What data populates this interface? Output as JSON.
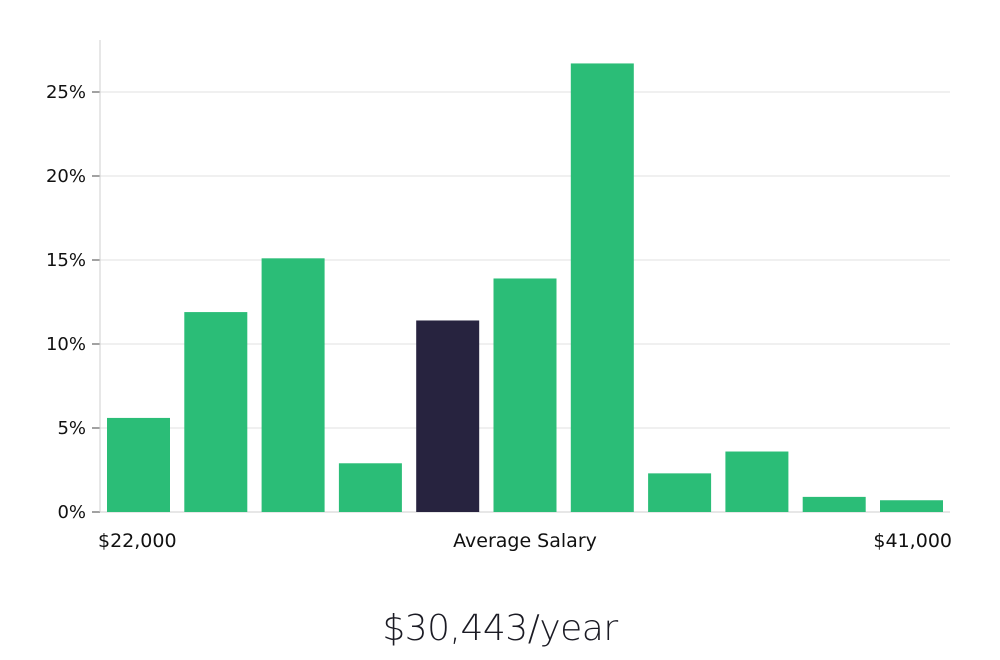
{
  "chart_data": {
    "type": "bar",
    "title": "",
    "xlabel": "Average Salary",
    "ylabel": "",
    "x_range_labels": {
      "min": "$22,000",
      "max": "$41,000"
    },
    "values": [
      5.6,
      11.9,
      15.1,
      2.9,
      11.4,
      13.9,
      26.7,
      2.3,
      3.6,
      0.9,
      0.7
    ],
    "highlight_index": 4,
    "ylim": [
      0,
      28
    ],
    "yticks": [
      0,
      5,
      10,
      15,
      20,
      25
    ],
    "ytick_labels": [
      "0%",
      "5%",
      "10%",
      "15%",
      "20%",
      "25%"
    ],
    "grid": true,
    "colors": {
      "bar": "#2bbd77",
      "highlight": "#27233f",
      "grid": "#e0e0e0",
      "axis": "#cfcfcf"
    }
  },
  "headline": "$30,443/year"
}
